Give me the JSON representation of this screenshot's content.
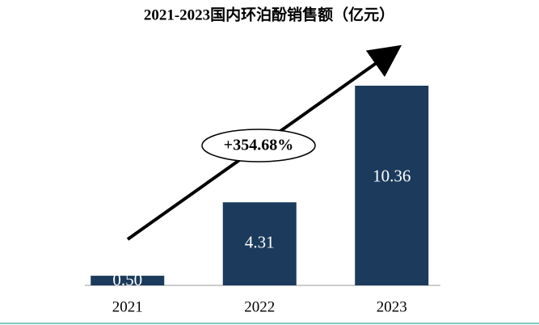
{
  "chart_data": {
    "type": "bar",
    "title": "2021-2023国内环泊酚销售额（亿元）",
    "categories": [
      "2021",
      "2022",
      "2023"
    ],
    "values": [
      0.5,
      4.31,
      10.36
    ],
    "value_labels": [
      "0.50",
      "4.31",
      "10.36"
    ],
    "color": "#1b3a5c",
    "annotation": "+354.68%"
  }
}
